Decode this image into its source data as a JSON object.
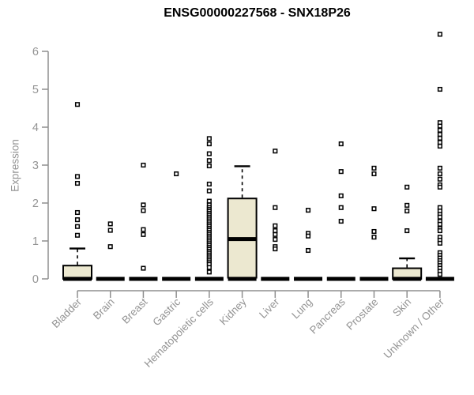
{
  "title": "ENSG00000227568 - SNX18P26",
  "colors": {
    "background": "#ffffff",
    "box_fill": "#ece8d0",
    "box_stroke": "#000000",
    "point_stroke": "#000000",
    "point_fill": "#ffffff",
    "axis_gray": "#8f8f8f",
    "label_gray": "#949494",
    "title_color": "#000000"
  },
  "chart_data": {
    "type": "boxplot",
    "title": "ENSG00000227568 - SNX18P26",
    "xlabel": "",
    "ylabel": "Expression",
    "ylim": [
      0,
      6.5
    ],
    "yticks": [
      0,
      1,
      2,
      3,
      4,
      5,
      6
    ],
    "grid": false,
    "legend": false,
    "categories": [
      "Bladder",
      "Brain",
      "Breast",
      "Gastric",
      "Hematopoietic cells",
      "Kidney",
      "Liver",
      "Lung",
      "Pancreas",
      "Prostate",
      "Skin",
      "Unknown / Other"
    ],
    "boxes": [
      {
        "label": "Bladder",
        "q1": 0,
        "median": 0,
        "q3": 0.35,
        "whisker_low": 0,
        "whisker_high": 0.8,
        "outliers": [
          4.6,
          2.7,
          2.52,
          1.75,
          1.56,
          1.38,
          1.15
        ]
      },
      {
        "label": "Brain",
        "q1": 0,
        "median": 0,
        "q3": 0,
        "whisker_low": 0,
        "whisker_high": 0,
        "outliers": [
          1.45,
          1.28,
          0.85
        ]
      },
      {
        "label": "Breast",
        "q1": 0,
        "median": 0,
        "q3": 0,
        "whisker_low": 0,
        "whisker_high": 0,
        "outliers": [
          3.0,
          1.95,
          1.8,
          1.3,
          1.17,
          0.28
        ]
      },
      {
        "label": "Gastric",
        "q1": 0,
        "median": 0,
        "q3": 0,
        "whisker_low": 0,
        "whisker_high": 0,
        "outliers": [
          2.77
        ]
      },
      {
        "label": "Hematopoietic cells",
        "q1": 0,
        "median": 0,
        "q3": 0,
        "whisker_low": 0,
        "whisker_high": 0,
        "outliers": [
          3.7,
          3.56,
          3.3,
          3.12,
          2.98,
          2.5,
          2.32,
          2.05,
          1.95,
          1.88,
          1.83,
          1.78,
          1.73,
          1.68,
          1.63,
          1.58,
          1.53,
          1.48,
          1.43,
          1.38,
          1.33,
          1.28,
          1.23,
          1.18,
          1.13,
          1.08,
          1.03,
          0.98,
          0.93,
          0.88,
          0.83,
          0.78,
          0.73,
          0.68,
          0.63,
          0.58,
          0.53,
          0.48,
          0.43,
          0.38,
          0.3,
          0.18
        ]
      },
      {
        "label": "Kidney",
        "q1": 0.03,
        "median": 1.05,
        "q3": 2.12,
        "whisker_low": 0,
        "whisker_high": 2.97,
        "outliers": []
      },
      {
        "label": "Liver",
        "q1": 0,
        "median": 0,
        "q3": 0,
        "whisker_low": 0,
        "whisker_high": 0,
        "outliers": [
          3.37,
          1.88,
          1.4,
          1.27,
          1.17,
          1.04,
          0.85,
          0.79
        ]
      },
      {
        "label": "Lung",
        "q1": 0,
        "median": 0,
        "q3": 0,
        "whisker_low": 0,
        "whisker_high": 0,
        "outliers": [
          1.81,
          1.2,
          1.13,
          0.75
        ]
      },
      {
        "label": "Pancreas",
        "q1": 0,
        "median": 0,
        "q3": 0,
        "whisker_low": 0,
        "whisker_high": 0,
        "outliers": [
          3.56,
          2.83,
          2.19,
          1.88,
          1.52
        ]
      },
      {
        "label": "Prostate",
        "q1": 0,
        "median": 0,
        "q3": 0,
        "whisker_low": 0,
        "whisker_high": 0,
        "outliers": [
          2.92,
          2.77,
          1.85,
          1.25,
          1.1
        ]
      },
      {
        "label": "Skin",
        "q1": 0,
        "median": 0,
        "q3": 0.28,
        "whisker_low": 0,
        "whisker_high": 0.54,
        "outliers": [
          2.42,
          1.94,
          1.79,
          1.27
        ]
      },
      {
        "label": "Unknown / Other",
        "q1": 0,
        "median": 0,
        "q3": 0,
        "whisker_low": 0,
        "whisker_high": 0,
        "outliers": [
          6.45,
          5.0,
          4.12,
          4.03,
          3.92,
          3.81,
          3.71,
          3.6,
          3.5,
          2.92,
          2.77,
          2.63,
          2.48,
          2.42,
          1.88,
          1.79,
          1.7,
          1.63,
          1.52,
          1.44,
          1.33,
          1.27,
          1.1,
          1.02,
          0.94,
          0.69,
          0.62,
          0.55,
          0.48,
          0.42,
          0.35,
          0.28,
          0.2,
          0.12
        ]
      }
    ]
  }
}
